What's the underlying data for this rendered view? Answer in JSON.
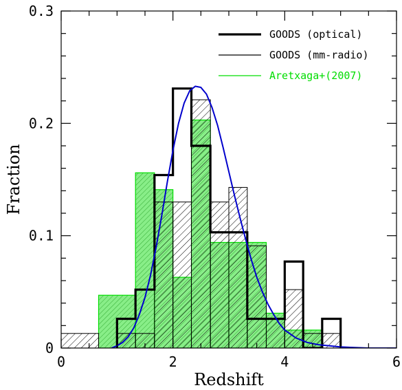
{
  "chart_data": {
    "type": "histogram",
    "xlabel": "Redshift",
    "ylabel": "Fraction",
    "xlim": [
      0,
      6
    ],
    "ylim": [
      0,
      0.3
    ],
    "x_ticks": [
      0,
      2,
      4,
      6
    ],
    "x_tick_labels": [
      "0",
      "2",
      "4",
      "6"
    ],
    "y_ticks": [
      0,
      0.1,
      0.2,
      0.3
    ],
    "y_tick_labels": [
      "0",
      "0.1",
      "0.2",
      "0.3"
    ],
    "grid": false,
    "legend_position": "top-right",
    "series": [
      {
        "name": "GOODS (optical)",
        "style": "thick-black-step",
        "color": "#000000",
        "bins": [
          [
            1.0,
            1.33,
            0.026
          ],
          [
            1.33,
            1.67,
            0.052
          ],
          [
            1.67,
            2.0,
            0.154
          ],
          [
            2.0,
            2.33,
            0.231
          ],
          [
            2.33,
            2.67,
            0.18
          ],
          [
            2.67,
            3.0,
            0.103
          ],
          [
            3.0,
            3.33,
            0.103
          ],
          [
            3.33,
            3.67,
            0.026
          ],
          [
            3.67,
            4.0,
            0.026
          ],
          [
            4.0,
            4.33,
            0.077
          ],
          [
            4.33,
            4.67,
            0.0
          ],
          [
            4.67,
            5.0,
            0.026
          ]
        ]
      },
      {
        "name": "GOODS (mm-radio)",
        "style": "thin-black-hatched",
        "color": "#000000",
        "bins": [
          [
            0.0,
            0.67,
            0.013
          ],
          [
            1.0,
            1.33,
            0.013
          ],
          [
            1.33,
            1.67,
            0.013
          ],
          [
            1.67,
            2.0,
            0.13
          ],
          [
            2.0,
            2.33,
            0.13
          ],
          [
            2.33,
            2.67,
            0.221
          ],
          [
            2.67,
            3.0,
            0.13
          ],
          [
            3.0,
            3.33,
            0.143
          ],
          [
            3.33,
            3.67,
            0.091
          ],
          [
            3.67,
            4.0,
            0.026
          ],
          [
            4.0,
            4.33,
            0.052
          ],
          [
            4.33,
            4.67,
            0.013
          ],
          [
            4.67,
            5.0,
            0.013
          ]
        ]
      },
      {
        "name": "Aretxaga+(2007)",
        "style": "green-filled-hatched",
        "color": "#00dd00",
        "bins": [
          [
            0.67,
            1.33,
            0.047
          ],
          [
            1.33,
            1.67,
            0.156
          ],
          [
            1.67,
            2.0,
            0.141
          ],
          [
            2.0,
            2.33,
            0.063
          ],
          [
            2.33,
            2.67,
            0.203
          ],
          [
            2.67,
            3.0,
            0.094
          ],
          [
            3.0,
            3.33,
            0.094
          ],
          [
            3.33,
            3.67,
            0.094
          ],
          [
            3.67,
            4.0,
            0.031
          ],
          [
            4.0,
            4.67,
            0.016
          ]
        ]
      },
      {
        "name": "",
        "style": "blue-curve",
        "color": "#0000cc",
        "x": [
          0.9,
          1.0,
          1.1,
          1.2,
          1.3,
          1.4,
          1.5,
          1.6,
          1.7,
          1.8,
          1.9,
          2.0,
          2.1,
          2.2,
          2.3,
          2.4,
          2.5,
          2.6,
          2.7,
          2.8,
          2.9,
          3.0,
          3.1,
          3.2,
          3.3,
          3.4,
          3.5,
          3.6,
          3.7,
          3.8,
          3.9,
          4.0,
          4.2,
          4.4,
          4.6,
          4.8,
          5.0,
          5.2,
          5.5,
          6.0
        ],
        "y": [
          0.0,
          0.002,
          0.005,
          0.01,
          0.018,
          0.03,
          0.045,
          0.065,
          0.09,
          0.118,
          0.148,
          0.176,
          0.2,
          0.218,
          0.229,
          0.233,
          0.232,
          0.226,
          0.214,
          0.198,
          0.178,
          0.157,
          0.136,
          0.116,
          0.097,
          0.079,
          0.063,
          0.05,
          0.039,
          0.03,
          0.022,
          0.016,
          0.009,
          0.005,
          0.003,
          0.002,
          0.001,
          0.0005,
          0.0,
          0.0
        ]
      }
    ]
  }
}
